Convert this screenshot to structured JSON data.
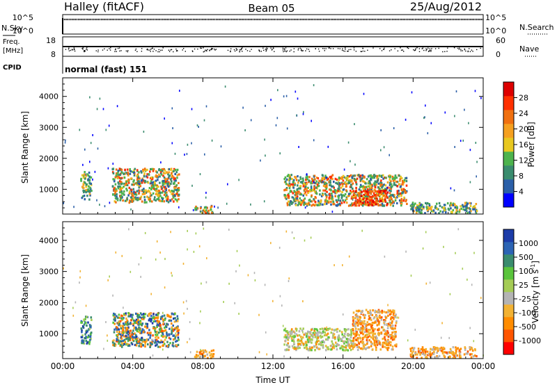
{
  "header": {
    "station": "Halley (fitACF)",
    "beam": "Beam 05",
    "date": "25/Aug/2012"
  },
  "noise_panel": {
    "left_label": "N.Sky",
    "right_label": "N.Search",
    "tick_top": "10^5",
    "tick_bottom": "10^0"
  },
  "freq_panel": {
    "left_label_1": "Freq.",
    "left_label_2": "[MHz]",
    "right_label": "Nave",
    "left_ticks": [
      "18",
      "8"
    ],
    "right_ticks": [
      "60",
      "0"
    ]
  },
  "cpid": {
    "label": "CPID",
    "value": "normal (fast) 151"
  },
  "colors": {
    "power_scale": [
      "#0000ff",
      "#2b5fa8",
      "#3a8c6e",
      "#4db34d",
      "#e8c820",
      "#f5a020",
      "#f07010",
      "#ff3000",
      "#dd0000"
    ],
    "velocity_scale": [
      "#ff0000",
      "#ff5500",
      "#ff8c00",
      "#f2b233",
      "#b4b4b4",
      "#a5cc55",
      "#5ac43c",
      "#3a8c6e",
      "#2c64b4",
      "#1c3ca8"
    ]
  },
  "chart_data": [
    {
      "type": "heatmap",
      "title": "",
      "xlabel": "",
      "ylabel": "Slant Range [km]",
      "x_ticks": [
        "00:00",
        "04:00",
        "08:00",
        "12:00",
        "16:00",
        "20:00",
        "00:00"
      ],
      "y_ticks": [
        1000,
        2000,
        3000,
        4000
      ],
      "ylim": [
        200,
        4600
      ],
      "colorbar": {
        "label": "Power [dB]",
        "ticks": [
          4,
          8,
          12,
          16,
          20,
          24,
          28
        ]
      },
      "features": [
        {
          "time_h": [
            1.0,
            1.6
          ],
          "range_km": [
            700,
            1600
          ],
          "level": "medium"
        },
        {
          "time_h": [
            2.8,
            6.6
          ],
          "range_km": [
            600,
            1700
          ],
          "level": "high"
        },
        {
          "time_h": [
            7.5,
            8.6
          ],
          "range_km": [
            250,
            500
          ],
          "level": "high"
        },
        {
          "time_h": [
            12.6,
            19.6
          ],
          "range_km": [
            500,
            1500
          ],
          "level": "high"
        },
        {
          "time_h": [
            16.5,
            18.5
          ],
          "range_km": [
            500,
            1000
          ],
          "level": "peak"
        },
        {
          "time_h": [
            19.8,
            23.6
          ],
          "range_km": [
            250,
            600
          ],
          "level": "medium"
        }
      ]
    },
    {
      "type": "heatmap",
      "title": "",
      "xlabel": "Time UT",
      "ylabel": "Slant Range [km]",
      "x_ticks": [
        "00:00",
        "04:00",
        "08:00",
        "12:00",
        "16:00",
        "20:00",
        "00:00"
      ],
      "y_ticks": [
        1000,
        2000,
        3000,
        4000
      ],
      "ylim": [
        200,
        4600
      ],
      "colorbar": {
        "label": "Velocity [m s-1]",
        "ticks": [
          1000,
          500,
          100,
          25,
          -25,
          -100,
          -500,
          -1000
        ]
      },
      "features": [
        {
          "time_h": [
            1.0,
            1.6
          ],
          "range_km": [
            700,
            1600
          ],
          "level": "positive"
        },
        {
          "time_h": [
            2.8,
            6.6
          ],
          "range_km": [
            600,
            1700
          ],
          "level": "mixed"
        },
        {
          "time_h": [
            7.5,
            8.6
          ],
          "range_km": [
            250,
            500
          ],
          "level": "negative"
        },
        {
          "time_h": [
            12.6,
            16.5
          ],
          "range_km": [
            500,
            1200
          ],
          "level": "near-zero"
        },
        {
          "time_h": [
            16.5,
            19.0
          ],
          "range_km": [
            500,
            1800
          ],
          "level": "negative"
        },
        {
          "time_h": [
            19.8,
            23.6
          ],
          "range_km": [
            250,
            600
          ],
          "level": "negative"
        }
      ]
    }
  ]
}
